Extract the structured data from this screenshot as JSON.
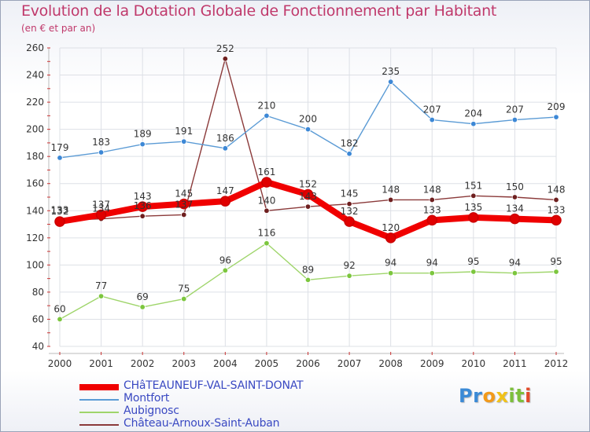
{
  "title": "Evolution de la Dotation Globale de Fonctionnement par Habitant",
  "subtitle": "(en € et par an)",
  "logo": {
    "text": "Proxiti",
    "colors": [
      "#3b8ad6",
      "#3b8ad6",
      "#f29a1a",
      "#f0c21a",
      "#7cbf3b",
      "#7cbf3b",
      "#e24a2a"
    ]
  },
  "chart_data": {
    "type": "line",
    "x": [
      2000,
      2001,
      2002,
      2003,
      2004,
      2005,
      2006,
      2007,
      2008,
      2009,
      2010,
      2011,
      2012
    ],
    "ylim": [
      40,
      260
    ],
    "yticks": [
      40,
      60,
      80,
      100,
      120,
      140,
      160,
      180,
      200,
      220,
      240,
      260
    ],
    "grid": true,
    "series": [
      {
        "name": "CHâTEAUNEUF-VAL-SAINT-DONAT",
        "color": "#f00000",
        "marker_color": "#e00000",
        "bold": true,
        "values": [
          132,
          137,
          143,
          145,
          147,
          161,
          152,
          132,
          120,
          133,
          135,
          134,
          133
        ],
        "labels": [
          "132",
          "137",
          "143",
          "145",
          "147",
          "161",
          "152",
          "132",
          "120",
          "133",
          "135",
          "134",
          "133"
        ]
      },
      {
        "name": "Montfort",
        "color": "#5b9bd5",
        "marker_color": "#3d88d6",
        "values": [
          179,
          183,
          189,
          191,
          186,
          210,
          200,
          182,
          235,
          207,
          204,
          207,
          209
        ],
        "labels": [
          "179",
          "183",
          "189",
          "191",
          "186",
          "210",
          "200",
          "182",
          "235",
          "207",
          "204",
          "207",
          "209"
        ]
      },
      {
        "name": "Aubignosc",
        "color": "#9fd56b",
        "marker_color": "#7cc63e",
        "values": [
          60,
          77,
          69,
          75,
          96,
          116,
          89,
          92,
          94,
          94,
          95,
          94,
          95
        ],
        "labels": [
          "60",
          "77",
          "69",
          "75",
          "96",
          "116",
          "89",
          "92",
          "94",
          "94",
          "95",
          "94",
          "95"
        ]
      },
      {
        "name": "Château-Arnoux-Saint-Auban",
        "color": "#8b3a3a",
        "marker_color": "#6e1f1f",
        "values": [
          133,
          134,
          136,
          137,
          252,
          140,
          143,
          145,
          148,
          148,
          151,
          150,
          148
        ],
        "labels": [
          "133",
          "134",
          "136",
          "137",
          "252",
          "140",
          "143",
          "145",
          "148",
          "148",
          "151",
          "150",
          "148"
        ]
      }
    ]
  }
}
